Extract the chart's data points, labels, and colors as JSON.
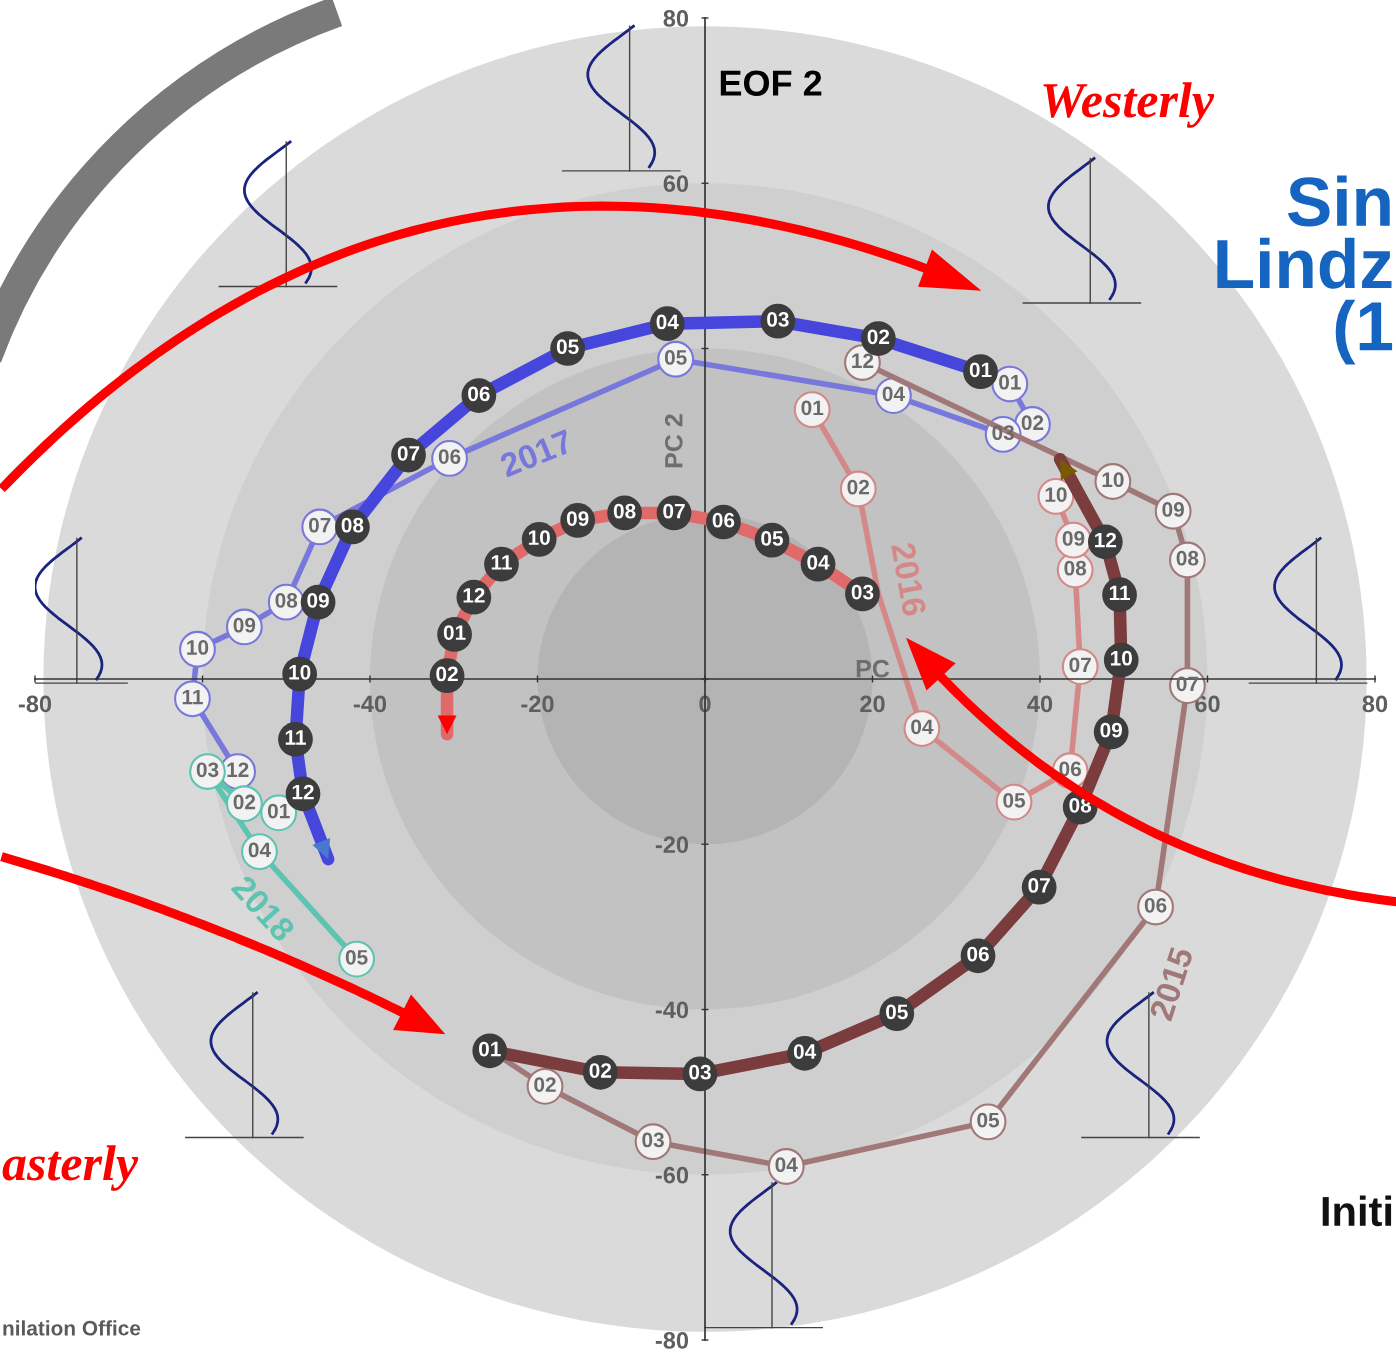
{
  "chart_data": {
    "type": "line",
    "title": "EOF 2",
    "xlabel": "PC",
    "ylabel": "PC 2",
    "xlim": [
      -80,
      80
    ],
    "ylim": [
      -80,
      80
    ],
    "xticks": [
      -80,
      {
        "value": -60,
        "label": null
      },
      -40,
      -20,
      0,
      20,
      40,
      60,
      80
    ],
    "yticks": [
      -80,
      -60,
      -40,
      -20,
      {
        "value": 0,
        "label": null
      },
      {
        "value": 20,
        "label": null
      },
      {
        "value": 40,
        "label": null
      },
      60,
      80
    ],
    "grid": false,
    "legend": false,
    "marker": "circle",
    "annotations": [
      "Westerly",
      "asterly",
      "Sin\nLindz\n(1",
      "Initi",
      "nilation Office",
      {
        "text": "01",
        "x": -25.7,
        "y": -45.0
      },
      {
        "text": "02",
        "x": -12.5,
        "y": -47.6
      },
      {
        "text": "03",
        "x": -0.6,
        "y": -47.8
      },
      {
        "text": "04",
        "x": 11.9,
        "y": -45.3
      },
      {
        "text": "05",
        "x": 22.9,
        "y": -40.5
      },
      {
        "text": "06",
        "x": 32.6,
        "y": -33.5
      },
      {
        "text": "07",
        "x": 39.9,
        "y": -25.2
      },
      {
        "text": "08",
        "x": 44.8,
        "y": -15.5
      },
      {
        "text": "09",
        "x": 48.5,
        "y": -6.4
      },
      {
        "text": "10",
        "x": 49.7,
        "y": 2.3
      },
      {
        "text": "11",
        "x": 49.5,
        "y": 10.2
      },
      {
        "text": "12",
        "x": 47.8,
        "y": 16.6
      },
      {
        "text": "01",
        "x": 32.9,
        "y": 37.2
      },
      {
        "text": "02",
        "x": 20.7,
        "y": 41.2
      },
      {
        "text": "03",
        "x": 8.7,
        "y": 43.3
      },
      {
        "text": "04",
        "x": -4.5,
        "y": 43.0
      },
      {
        "text": "05",
        "x": -16.4,
        "y": 40.0
      },
      {
        "text": "06",
        "x": -27.0,
        "y": 34.3
      },
      {
        "text": "07",
        "x": -35.4,
        "y": 27.1
      },
      {
        "text": "08",
        "x": -42.1,
        "y": 18.4
      },
      {
        "text": "09",
        "x": -46.2,
        "y": 9.3
      },
      {
        "text": "10",
        "x": -48.4,
        "y": 0.6
      },
      {
        "text": "11",
        "x": -48.9,
        "y": -7.3
      },
      {
        "text": "12",
        "x": -48.0,
        "y": -13.9
      },
      {
        "text": "03",
        "x": 18.8,
        "y": 10.3
      },
      {
        "text": "04",
        "x": 13.5,
        "y": 13.9
      },
      {
        "text": "05",
        "x": 8.0,
        "y": 16.8
      },
      {
        "text": "06",
        "x": 2.2,
        "y": 19.0
      },
      {
        "text": "07",
        "x": -3.7,
        "y": 20.1
      },
      {
        "text": "08",
        "x": -9.6,
        "y": 20.1
      },
      {
        "text": "09",
        "x": -15.2,
        "y": 19.2
      },
      {
        "text": "10",
        "x": -19.8,
        "y": 16.9
      },
      {
        "text": "11",
        "x": -24.3,
        "y": 13.9
      },
      {
        "text": "12",
        "x": -27.6,
        "y": 9.9
      },
      {
        "text": "01",
        "x": -29.9,
        "y": 5.4
      },
      {
        "text": "02",
        "x": -30.8,
        "y": 0.4
      },
      {
        "text": "01",
        "x": 36.4,
        "y": 35.7
      },
      {
        "text": "02",
        "x": 39.1,
        "y": 30.8
      },
      {
        "text": "03",
        "x": 35.6,
        "y": 29.6
      },
      {
        "text": "04",
        "x": 22.5,
        "y": 34.3
      },
      {
        "text": "05",
        "x": -3.5,
        "y": 38.7
      },
      {
        "text": "06",
        "x": -30.5,
        "y": 26.7
      },
      {
        "text": "07",
        "x": -46.0,
        "y": 18.4
      },
      {
        "text": "08",
        "x": -50.0,
        "y": 9.3
      },
      {
        "text": "09",
        "x": -55.0,
        "y": 6.3
      },
      {
        "text": "10",
        "x": -60.6,
        "y": 3.6
      },
      {
        "text": "11",
        "x": -61.2,
        "y": -2.4
      },
      {
        "text": "12",
        "x": -55.8,
        "y": -11.2
      },
      {
        "text": "01",
        "x": 12.8,
        "y": 32.6
      },
      {
        "text": "02",
        "x": 18.3,
        "y": 23.0
      },
      {
        "text": "04",
        "x": 25.9,
        "y": -6.0
      },
      {
        "text": "05",
        "x": 36.9,
        "y": -14.9
      },
      {
        "text": "06",
        "x": 43.6,
        "y": -11.1
      },
      {
        "text": "07",
        "x": 44.8,
        "y": 1.5
      },
      {
        "text": "08",
        "x": 44.2,
        "y": 13.2
      },
      {
        "text": "09",
        "x": 44.0,
        "y": 16.8
      },
      {
        "text": "10",
        "x": 41.9,
        "y": 22.1
      },
      {
        "text": "02",
        "x": -19.1,
        "y": -49.3
      },
      {
        "text": "03",
        "x": -6.2,
        "y": -56.0
      },
      {
        "text": "04",
        "x": 9.7,
        "y": -59.0
      },
      {
        "text": "05",
        "x": 33.8,
        "y": -53.6
      },
      {
        "text": "06",
        "x": 53.8,
        "y": -27.6
      },
      {
        "text": "07",
        "x": 57.6,
        "y": -0.8
      },
      {
        "text": "08",
        "x": 57.6,
        "y": 14.4
      },
      {
        "text": "09",
        "x": 55.9,
        "y": 20.3
      },
      {
        "text": "10",
        "x": 48.7,
        "y": 23.9
      },
      {
        "text": "12",
        "x": 18.8,
        "y": 38.3
      },
      {
        "text": "01",
        "x": -50.9,
        "y": -16.2
      },
      {
        "text": "02",
        "x": -55.0,
        "y": -15.1
      },
      {
        "text": "03",
        "x": -59.4,
        "y": -11.2
      },
      {
        "text": "04",
        "x": -53.2,
        "y": -20.9
      },
      {
        "text": "05",
        "x": -41.6,
        "y": -33.9
      }
    ],
    "series": [
      {
        "color": "#7a3c3c",
        "x": [
          -25.7,
          -12.5,
          -0.6,
          11.9,
          22.9,
          32.6,
          39.9,
          44.8,
          48.5,
          49.7,
          49.5,
          47.8,
          42.4
        ],
        "values": [
          -45.0,
          -47.6,
          -47.8,
          -45.3,
          -40.5,
          -33.5,
          -25.2,
          -15.5,
          -6.4,
          2.3,
          10.2,
          16.6,
          26.6
        ]
      },
      {
        "color": "#4646dc",
        "x": [
          32.9,
          20.7,
          8.7,
          -4.5,
          -16.4,
          -27.0,
          -35.4,
          -42.1,
          -46.2,
          -48.4,
          -48.9,
          -48.0,
          -45.0
        ],
        "values": [
          37.2,
          41.2,
          43.3,
          43.0,
          40.0,
          34.3,
          27.1,
          18.4,
          9.3,
          0.6,
          -7.3,
          -13.9,
          -21.8
        ]
      },
      {
        "color": "#e06a6a",
        "x": [
          18.8,
          13.5,
          8.0,
          2.2,
          -3.7,
          -9.6,
          -15.2,
          -19.8,
          -24.3,
          -27.6,
          -29.9,
          -30.8,
          -30.8
        ],
        "values": [
          10.3,
          13.9,
          16.8,
          19.0,
          20.1,
          20.1,
          19.2,
          16.9,
          13.9,
          9.9,
          5.4,
          0.4,
          -6.7
        ]
      },
      {
        "name": "2017",
        "color": "#7878dc",
        "x": [
          36.4,
          39.1,
          35.6,
          22.5,
          -3.5,
          -30.5,
          -46.0,
          -50.0,
          -55.0,
          -60.6,
          -61.2,
          -55.8
        ],
        "values": [
          35.7,
          30.8,
          29.6,
          34.3,
          38.7,
          26.7,
          18.4,
          9.3,
          6.3,
          3.6,
          -2.4,
          -11.2
        ]
      },
      {
        "name": "2016",
        "color": "#d48888",
        "x": [
          12.8,
          18.3,
          20.7,
          25.9,
          36.9,
          43.6,
          44.8,
          44.2,
          44.0,
          41.9
        ],
        "values": [
          32.6,
          23.0,
          10.3,
          -6.0,
          -14.9,
          -11.1,
          1.5,
          13.2,
          16.8,
          22.1
        ]
      },
      {
        "name": "2015",
        "color": "#a07878",
        "x": [
          -26.9,
          -19.1,
          -6.2,
          9.7,
          33.8,
          53.8,
          57.6,
          57.6,
          55.9,
          48.7,
          18.8
        ],
        "values": [
          -44.1,
          -49.3,
          -56.0,
          -59.0,
          -53.6,
          -27.6,
          -0.8,
          14.4,
          20.3,
          23.9,
          38.3
        ]
      },
      {
        "name": "2018",
        "color": "#5cc4b0",
        "x": [
          -50.9,
          -55.0,
          -59.4,
          -53.2,
          -41.6
        ],
        "values": [
          -16.2,
          -15.1,
          -11.2,
          -20.9,
          -33.9
        ]
      }
    ]
  }
}
